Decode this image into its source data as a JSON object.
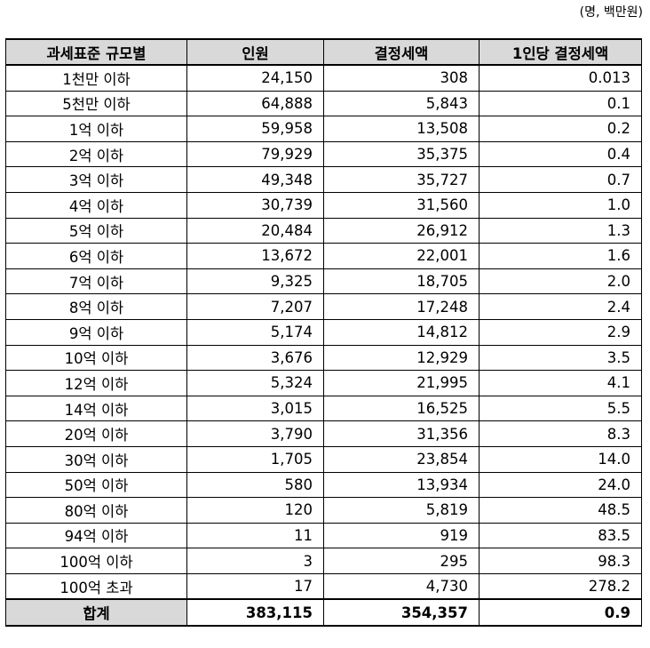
{
  "unit_note": "(명, 백만원)",
  "table": {
    "headers": [
      "과세표준 규모별",
      "인원",
      "결정세액",
      "1인당 결정세액"
    ],
    "rows": [
      [
        "1천만 이하",
        "24,150",
        "308",
        "0.013"
      ],
      [
        "5천만 이하",
        "64,888",
        "5,843",
        "0.1"
      ],
      [
        "1억 이하",
        "59,958",
        "13,508",
        "0.2"
      ],
      [
        "2억 이하",
        "79,929",
        "35,375",
        "0.4"
      ],
      [
        "3억 이하",
        "49,348",
        "35,727",
        "0.7"
      ],
      [
        "4억 이하",
        "30,739",
        "31,560",
        "1.0"
      ],
      [
        "5억 이하",
        "20,484",
        "26,912",
        "1.3"
      ],
      [
        "6억 이하",
        "13,672",
        "22,001",
        "1.6"
      ],
      [
        "7억 이하",
        "9,325",
        "18,705",
        "2.0"
      ],
      [
        "8억 이하",
        "7,207",
        "17,248",
        "2.4"
      ],
      [
        "9억 이하",
        "5,174",
        "14,812",
        "2.9"
      ],
      [
        "10억 이하",
        "3,676",
        "12,929",
        "3.5"
      ],
      [
        "12억 이하",
        "5,324",
        "21,995",
        "4.1"
      ],
      [
        "14억 이하",
        "3,015",
        "16,525",
        "5.5"
      ],
      [
        "20억 이하",
        "3,790",
        "31,356",
        "8.3"
      ],
      [
        "30억 이하",
        "1,705",
        "23,854",
        "14.0"
      ],
      [
        "50억 이하",
        "580",
        "13,934",
        "24.0"
      ],
      [
        "80억 이하",
        "120",
        "5,819",
        "48.5"
      ],
      [
        "94억 이하",
        "11",
        "919",
        "83.5"
      ],
      [
        "100억 이하",
        "3",
        "295",
        "98.3"
      ],
      [
        "100억 초과",
        "17",
        "4,730",
        "278.2"
      ]
    ],
    "total": [
      "합계",
      "383,115",
      "354,357",
      "0.9"
    ]
  }
}
